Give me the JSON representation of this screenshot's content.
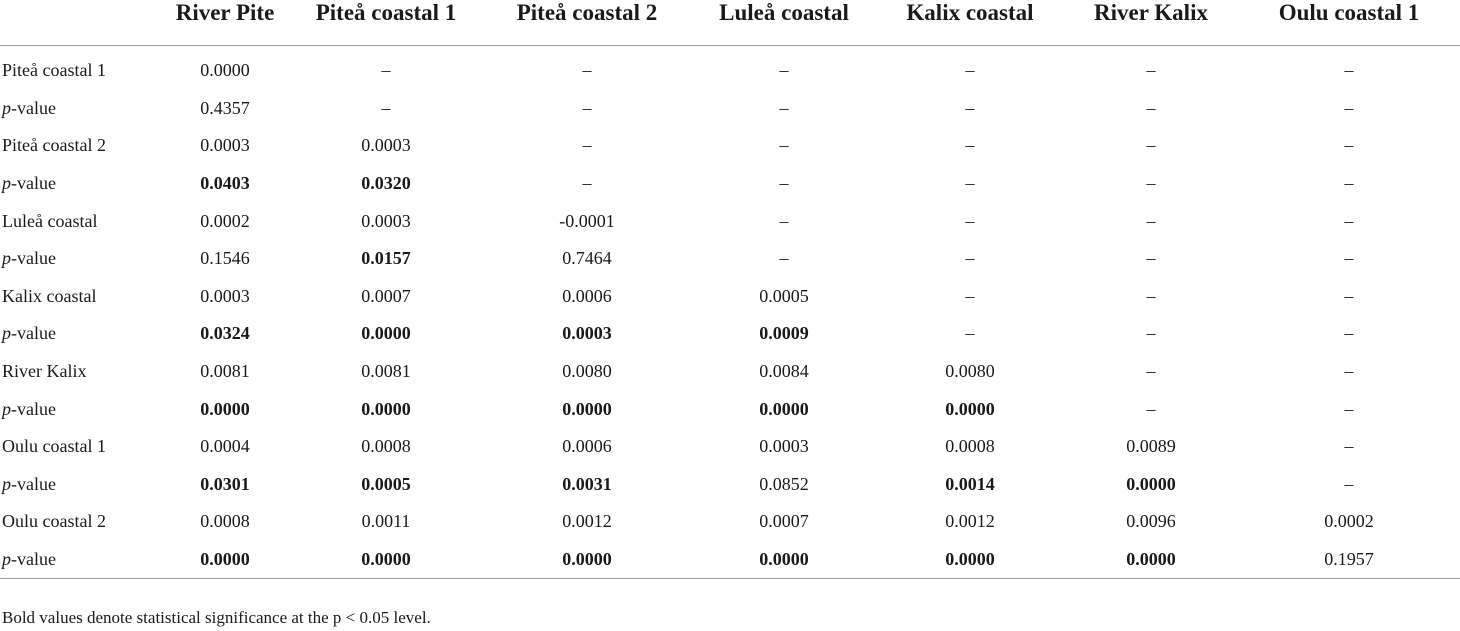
{
  "header": {
    "corner": "",
    "columns": [
      "River Pite",
      "Piteå coastal 1",
      "Piteå coastal 2",
      "Luleå coastal",
      "Kalix coastal",
      "River Kalix",
      "Oulu coastal 1"
    ]
  },
  "rows": [
    {
      "label": "Piteå coastal 1",
      "is_pvalue": false,
      "cells": [
        {
          "v": "0.0000",
          "b": false
        },
        {
          "v": "–",
          "b": false
        },
        {
          "v": "–",
          "b": false
        },
        {
          "v": "–",
          "b": false
        },
        {
          "v": "–",
          "b": false
        },
        {
          "v": "–",
          "b": false
        },
        {
          "v": "–",
          "b": false
        }
      ]
    },
    {
      "label_italic": "p",
      "label_rest": "-value",
      "is_pvalue": true,
      "cells": [
        {
          "v": "0.4357",
          "b": false
        },
        {
          "v": "–",
          "b": false
        },
        {
          "v": "–",
          "b": false
        },
        {
          "v": "–",
          "b": false
        },
        {
          "v": "–",
          "b": false
        },
        {
          "v": "–",
          "b": false
        },
        {
          "v": "–",
          "b": false
        }
      ]
    },
    {
      "label": "Piteå coastal 2",
      "is_pvalue": false,
      "cells": [
        {
          "v": "0.0003",
          "b": false
        },
        {
          "v": "0.0003",
          "b": false
        },
        {
          "v": "–",
          "b": false
        },
        {
          "v": "–",
          "b": false
        },
        {
          "v": "–",
          "b": false
        },
        {
          "v": "–",
          "b": false
        },
        {
          "v": "–",
          "b": false
        }
      ]
    },
    {
      "label_italic": "p",
      "label_rest": "-value",
      "is_pvalue": true,
      "cells": [
        {
          "v": "0.0403",
          "b": true
        },
        {
          "v": "0.0320",
          "b": true
        },
        {
          "v": "–",
          "b": false
        },
        {
          "v": "–",
          "b": false
        },
        {
          "v": "–",
          "b": false
        },
        {
          "v": "–",
          "b": false
        },
        {
          "v": "–",
          "b": false
        }
      ]
    },
    {
      "label": "Luleå coastal",
      "is_pvalue": false,
      "cells": [
        {
          "v": "0.0002",
          "b": false
        },
        {
          "v": "0.0003",
          "b": false
        },
        {
          "v": "-0.0001",
          "b": false
        },
        {
          "v": "–",
          "b": false
        },
        {
          "v": "–",
          "b": false
        },
        {
          "v": "–",
          "b": false
        },
        {
          "v": "–",
          "b": false
        }
      ]
    },
    {
      "label_italic": "p",
      "label_rest": "-value",
      "is_pvalue": true,
      "cells": [
        {
          "v": "0.1546",
          "b": false
        },
        {
          "v": "0.0157",
          "b": true
        },
        {
          "v": "0.7464",
          "b": false
        },
        {
          "v": "–",
          "b": false
        },
        {
          "v": "–",
          "b": false
        },
        {
          "v": "–",
          "b": false
        },
        {
          "v": "–",
          "b": false
        }
      ]
    },
    {
      "label": "Kalix coastal",
      "is_pvalue": false,
      "cells": [
        {
          "v": "0.0003",
          "b": false
        },
        {
          "v": "0.0007",
          "b": false
        },
        {
          "v": "0.0006",
          "b": false
        },
        {
          "v": "0.0005",
          "b": false
        },
        {
          "v": "–",
          "b": false
        },
        {
          "v": "–",
          "b": false
        },
        {
          "v": "–",
          "b": false
        }
      ]
    },
    {
      "label_italic": "p",
      "label_rest": "-value",
      "is_pvalue": true,
      "cells": [
        {
          "v": "0.0324",
          "b": true
        },
        {
          "v": "0.0000",
          "b": true
        },
        {
          "v": "0.0003",
          "b": true
        },
        {
          "v": "0.0009",
          "b": true
        },
        {
          "v": "–",
          "b": false
        },
        {
          "v": "–",
          "b": false
        },
        {
          "v": "–",
          "b": false
        }
      ]
    },
    {
      "label": "River Kalix",
      "is_pvalue": false,
      "cells": [
        {
          "v": "0.0081",
          "b": false
        },
        {
          "v": "0.0081",
          "b": false
        },
        {
          "v": "0.0080",
          "b": false
        },
        {
          "v": "0.0084",
          "b": false
        },
        {
          "v": "0.0080",
          "b": false
        },
        {
          "v": "–",
          "b": false
        },
        {
          "v": "–",
          "b": false
        }
      ]
    },
    {
      "label_italic": "p",
      "label_rest": "-value",
      "is_pvalue": true,
      "cells": [
        {
          "v": "0.0000",
          "b": true
        },
        {
          "v": "0.0000",
          "b": true
        },
        {
          "v": "0.0000",
          "b": true
        },
        {
          "v": "0.0000",
          "b": true
        },
        {
          "v": "0.0000",
          "b": true
        },
        {
          "v": "–",
          "b": false
        },
        {
          "v": "–",
          "b": false
        }
      ]
    },
    {
      "label": "Oulu coastal 1",
      "is_pvalue": false,
      "cells": [
        {
          "v": "0.0004",
          "b": false
        },
        {
          "v": "0.0008",
          "b": false
        },
        {
          "v": "0.0006",
          "b": false
        },
        {
          "v": "0.0003",
          "b": false
        },
        {
          "v": "0.0008",
          "b": false
        },
        {
          "v": "0.0089",
          "b": false
        },
        {
          "v": "–",
          "b": false
        }
      ]
    },
    {
      "label_italic": "p",
      "label_rest": "-value",
      "is_pvalue": true,
      "cells": [
        {
          "v": "0.0301",
          "b": true
        },
        {
          "v": "0.0005",
          "b": true
        },
        {
          "v": "0.0031",
          "b": true
        },
        {
          "v": "0.0852",
          "b": false
        },
        {
          "v": "0.0014",
          "b": true
        },
        {
          "v": "0.0000",
          "b": true
        },
        {
          "v": "–",
          "b": false
        }
      ]
    },
    {
      "label": "Oulu coastal 2",
      "is_pvalue": false,
      "cells": [
        {
          "v": "0.0008",
          "b": false
        },
        {
          "v": "0.0011",
          "b": false
        },
        {
          "v": "0.0012",
          "b": false
        },
        {
          "v": "0.0007",
          "b": false
        },
        {
          "v": "0.0012",
          "b": false
        },
        {
          "v": "0.0096",
          "b": false
        },
        {
          "v": "0.0002",
          "b": false
        }
      ]
    },
    {
      "label_italic": "p",
      "label_rest": "-value",
      "is_pvalue": true,
      "cells": [
        {
          "v": "0.0000",
          "b": true
        },
        {
          "v": "0.0000",
          "b": true
        },
        {
          "v": "0.0000",
          "b": true
        },
        {
          "v": "0.0000",
          "b": true
        },
        {
          "v": "0.0000",
          "b": true
        },
        {
          "v": "0.0000",
          "b": true
        },
        {
          "v": "0.1957",
          "b": false
        }
      ]
    }
  ],
  "footnote": "Bold values denote statistical significance at the p < 0.05 level."
}
